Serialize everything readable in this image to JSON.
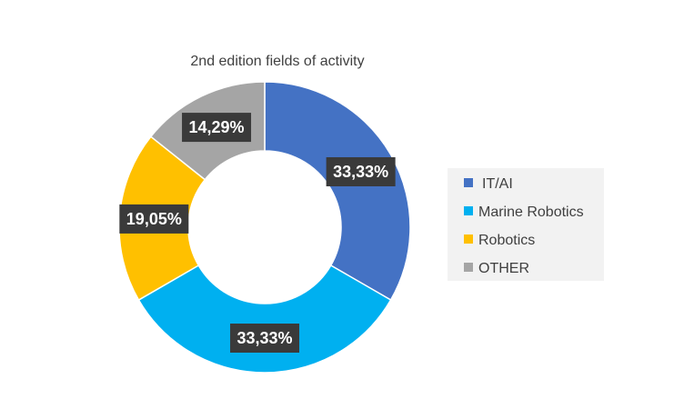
{
  "chart_data": {
    "type": "pie",
    "variant": "donut",
    "title": "2nd edition fields of activity",
    "categories": [
      "IT/AI",
      "Marine Robotics",
      "Robotics",
      "OTHER"
    ],
    "values": [
      33.33,
      33.33,
      19.05,
      14.29
    ],
    "labels": [
      "33,33%",
      "33,33%",
      "19,05%",
      "14,29%"
    ],
    "colors": [
      "#4472c4",
      "#00b0f0",
      "#ffc000",
      "#a5a5a5"
    ],
    "legend": {
      "position": "right",
      "entries": [
        "IT/AI",
        "Marine Robotics",
        "Robotics",
        "OTHER"
      ]
    }
  }
}
